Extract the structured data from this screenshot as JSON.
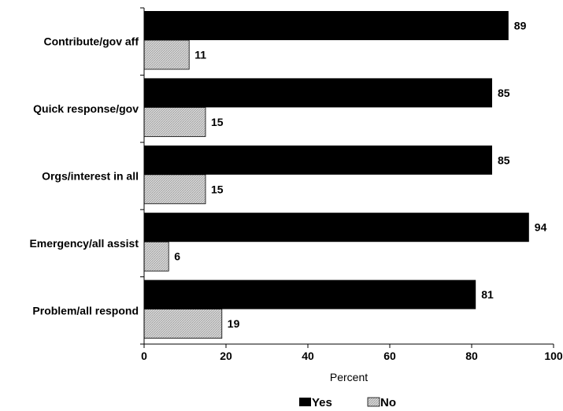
{
  "chart_data": {
    "type": "bar",
    "orientation": "horizontal",
    "categories": [
      "Contribute/gov aff",
      "Quick response/gov",
      "Orgs/interest in all",
      "Emergency/all assist",
      "Problem/all respond"
    ],
    "series": [
      {
        "name": "Yes",
        "values": [
          89,
          85,
          85,
          94,
          81
        ],
        "color": "#000000"
      },
      {
        "name": "No",
        "values": [
          11,
          15,
          15,
          6,
          19
        ],
        "color": "#d4d4d4"
      }
    ],
    "xlabel": "Percent",
    "xlim": [
      0,
      100
    ],
    "xticks": [
      "0",
      "20",
      "40",
      "60",
      "80",
      "100"
    ],
    "legend": "bottom",
    "grid": false
  }
}
